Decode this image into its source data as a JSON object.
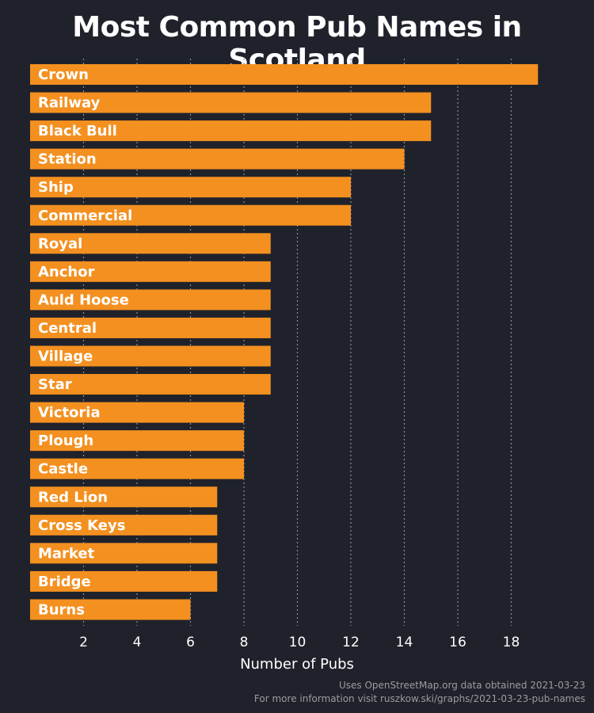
{
  "chart_data": {
    "type": "bar",
    "orientation": "horizontal",
    "title": "Most Common Pub Names in Scotland",
    "xlabel": "Number of Pubs",
    "ylabel": "",
    "categories": [
      "Crown",
      "Railway",
      "Black Bull",
      "Station",
      "Ship",
      "Commercial",
      "Royal",
      "Anchor",
      "Auld Hoose",
      "Central",
      "Village",
      "Star",
      "Victoria",
      "Plough",
      "Castle",
      "Red Lion",
      "Cross Keys",
      "Market",
      "Bridge",
      "Burns"
    ],
    "values": [
      19,
      15,
      15,
      14,
      12,
      12,
      9,
      9,
      9,
      9,
      9,
      9,
      8,
      8,
      8,
      7,
      7,
      7,
      7,
      6
    ],
    "xticks": [
      2,
      4,
      6,
      8,
      10,
      12,
      14,
      16,
      18
    ],
    "xlim": [
      0,
      20
    ],
    "grid": "vertical dotted",
    "legend": "none",
    "colors": {
      "background": "#20222b",
      "bar": "#f39020",
      "grid": "#8a8c93",
      "text": "#ffffff",
      "credits": "#9a9ca3"
    }
  },
  "credits": {
    "line1": "Uses OpenStreetMap.org data obtained 2021-03-23",
    "line2": "For more information visit ruszkow.ski/graphs/2021-03-23-pub-names"
  }
}
